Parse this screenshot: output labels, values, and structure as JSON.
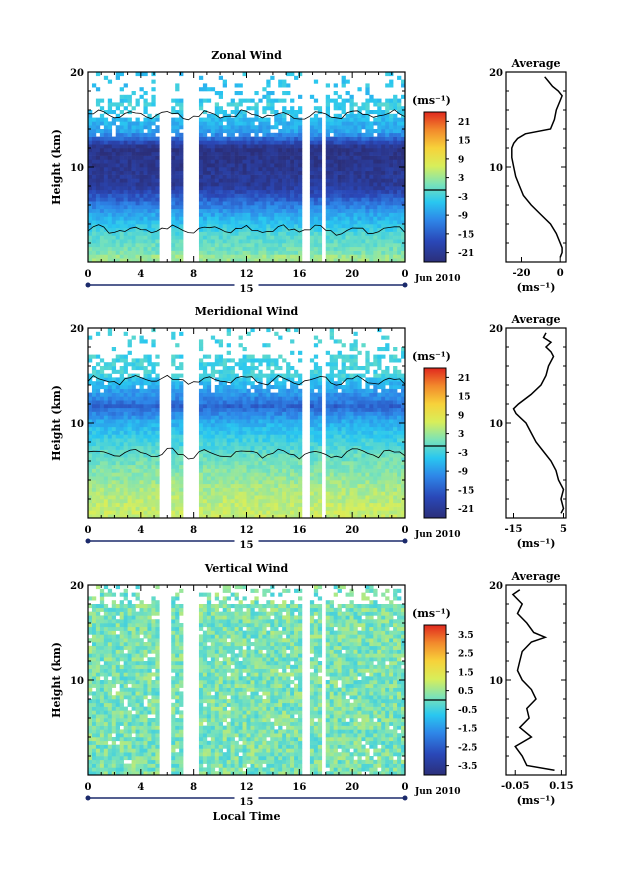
{
  "chart_data": [
    {
      "type": "heatmap",
      "title": "Zonal Wind",
      "ylabel": "Height (km)",
      "ylim": [
        0,
        20
      ],
      "yticks": [
        "20",
        "10"
      ],
      "xlim": [
        0,
        24
      ],
      "xticks": [
        "0",
        "4",
        "8",
        "12",
        "16",
        "20",
        "0"
      ],
      "day_label": "15",
      "date_label": "Jun 2010",
      "colorbar": {
        "unit": "(ms⁻¹)",
        "ticks": [
          "21",
          "15",
          "9",
          "3",
          "-3",
          "-9",
          "-15",
          "-21"
        ],
        "range": [
          -24,
          24
        ]
      },
      "profile": {
        "title": "Average",
        "xlabel": "(ms⁻¹)",
        "xticks": [
          "-20",
          "0"
        ],
        "xlim": [
          -28,
          3
        ],
        "yticks": [
          "20",
          "10"
        ],
        "heights": [
          0.5,
          1,
          1.5,
          2,
          3,
          4,
          5,
          6,
          7,
          8,
          9,
          10,
          11,
          12,
          12.5,
          13,
          13.5,
          14,
          15,
          16,
          17,
          17.5,
          18,
          18.5,
          19,
          19.5
        ],
        "values": [
          0,
          1,
          1,
          0,
          -2,
          -5,
          -10,
          -15,
          -19,
          -21,
          -23,
          -24,
          -25,
          -25,
          -24,
          -22,
          -18,
          -5,
          -3,
          -2,
          0,
          1,
          -1,
          -4,
          -6,
          -8
        ]
      }
    },
    {
      "type": "heatmap",
      "title": "Meridional Wind",
      "ylabel": "Height (km)",
      "ylim": [
        0,
        20
      ],
      "yticks": [
        "20",
        "10"
      ],
      "xlim": [
        0,
        24
      ],
      "xticks": [
        "0",
        "4",
        "8",
        "12",
        "16",
        "20",
        "0"
      ],
      "day_label": "15",
      "date_label": "Jun 2010",
      "colorbar": {
        "unit": "(ms⁻¹)",
        "ticks": [
          "21",
          "15",
          "9",
          "3",
          "-3",
          "-9",
          "-15",
          "-21"
        ],
        "range": [
          -24,
          24
        ]
      },
      "profile": {
        "title": "Average",
        "xlabel": "(ms⁻¹)",
        "xticks": [
          "-15",
          "5"
        ],
        "xlim": [
          -18,
          6
        ],
        "yticks": [
          "20",
          "10"
        ],
        "heights": [
          0.5,
          1,
          2,
          3,
          4,
          5,
          6,
          7,
          8,
          9,
          10,
          10.5,
          11,
          11.5,
          12,
          13,
          14,
          15,
          16,
          17,
          17.5,
          18,
          18.5,
          19,
          19.5
        ],
        "values": [
          4,
          5,
          4,
          5,
          3,
          2,
          0,
          -3,
          -6,
          -8,
          -10,
          -12,
          -14,
          -15,
          -13,
          -8,
          -4,
          -2,
          -1,
          1,
          0,
          -2,
          0,
          -3,
          -2
        ]
      }
    },
    {
      "type": "heatmap",
      "title": "Vertical Wind",
      "ylabel": "Height (km)",
      "ylim": [
        0,
        20
      ],
      "yticks": [
        "20",
        "10"
      ],
      "xlim": [
        0,
        24
      ],
      "xticks": [
        "0",
        "4",
        "8",
        "12",
        "16",
        "20",
        "0"
      ],
      "day_label": "15",
      "date_label": "Jun 2010",
      "xlabel": "Local Time",
      "colorbar": {
        "unit": "(ms⁻¹)",
        "ticks": [
          "3.5",
          "2.5",
          "1.5",
          "0.5",
          "-0.5",
          "-1.5",
          "-2.5",
          "-3.5"
        ],
        "range": [
          -4,
          4
        ]
      },
      "profile": {
        "title": "Average",
        "xlabel": "(ms⁻¹)",
        "xticks": [
          "-0.05",
          "0.15"
        ],
        "xlim": [
          -0.09,
          0.17
        ],
        "yticks": [
          "20",
          "10"
        ],
        "heights": [
          0.5,
          1,
          2,
          3,
          4,
          5,
          6,
          7,
          8,
          9,
          10,
          11,
          12,
          13,
          14,
          14.5,
          15,
          16,
          17,
          18,
          19,
          19.5
        ],
        "values": [
          0.12,
          0.0,
          -0.02,
          -0.05,
          0.02,
          -0.03,
          0.01,
          0.0,
          0.04,
          0.02,
          -0.02,
          -0.04,
          -0.03,
          -0.02,
          0.02,
          0.08,
          0.03,
          0.0,
          -0.04,
          -0.02,
          -0.06,
          -0.03
        ]
      }
    }
  ]
}
